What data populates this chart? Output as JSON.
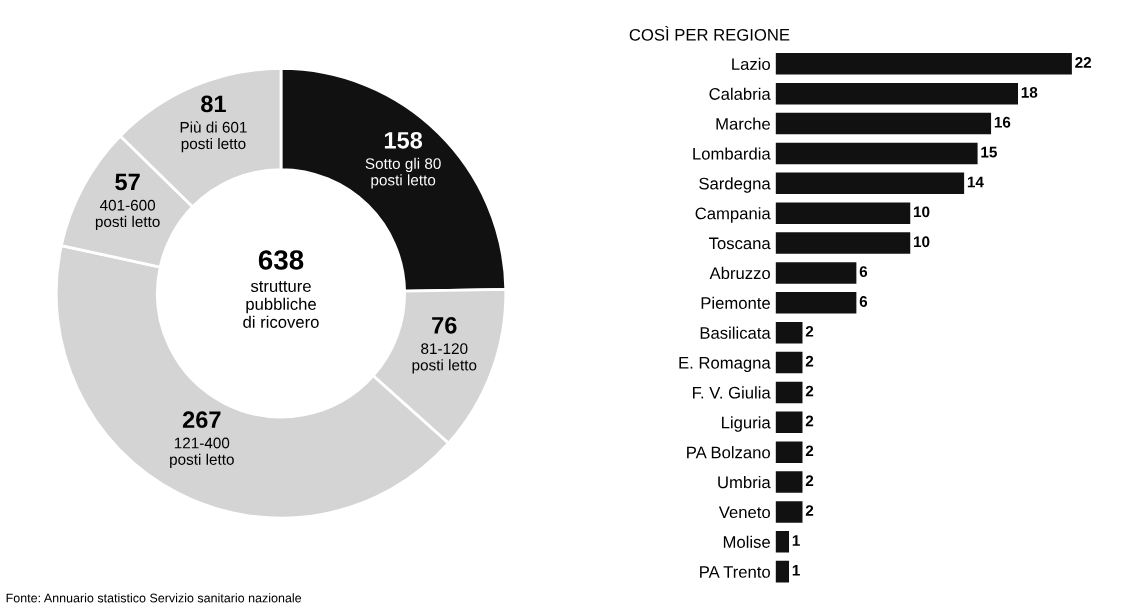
{
  "chart_data": [
    {
      "type": "donut",
      "categories": [
        "Sotto gli 80 posti letto",
        "81-120 posti letto",
        "121-400 posti letto",
        "401-600 posti letto",
        "Più di 601 posti letto"
      ],
      "values": [
        158,
        76,
        267,
        57,
        81
      ],
      "colors": [
        "#111111",
        "#d4d4d4",
        "#d4d4d4",
        "#d4d4d4",
        "#d4d4d4"
      ],
      "data_labels": true,
      "annotations": [
        "638",
        "strutture pubbliche di ricovero",
        "Fonte: Annuario statistico Servizio sanitario nazionale"
      ]
    },
    {
      "type": "bar",
      "orientation": "horizontal",
      "title": "COSÌ PER REGIONE",
      "categories": [
        "Lazio",
        "Calabria",
        "Marche",
        "Lombardia",
        "Sardegna",
        "Campania",
        "Toscana",
        "Abruzzo",
        "Piemonte",
        "Basilicata",
        "E. Romagna",
        "F. V. Giulia",
        "Liguria",
        "PA Bolzano",
        "Umbria",
        "Veneto",
        "Molise",
        "PA Trento"
      ],
      "values": [
        22,
        18,
        16,
        15,
        14,
        10,
        10,
        6,
        6,
        2,
        2,
        2,
        2,
        2,
        2,
        2,
        1,
        1
      ],
      "color": "#111111",
      "data_labels": true,
      "tick_labels": "y"
    }
  ]
}
